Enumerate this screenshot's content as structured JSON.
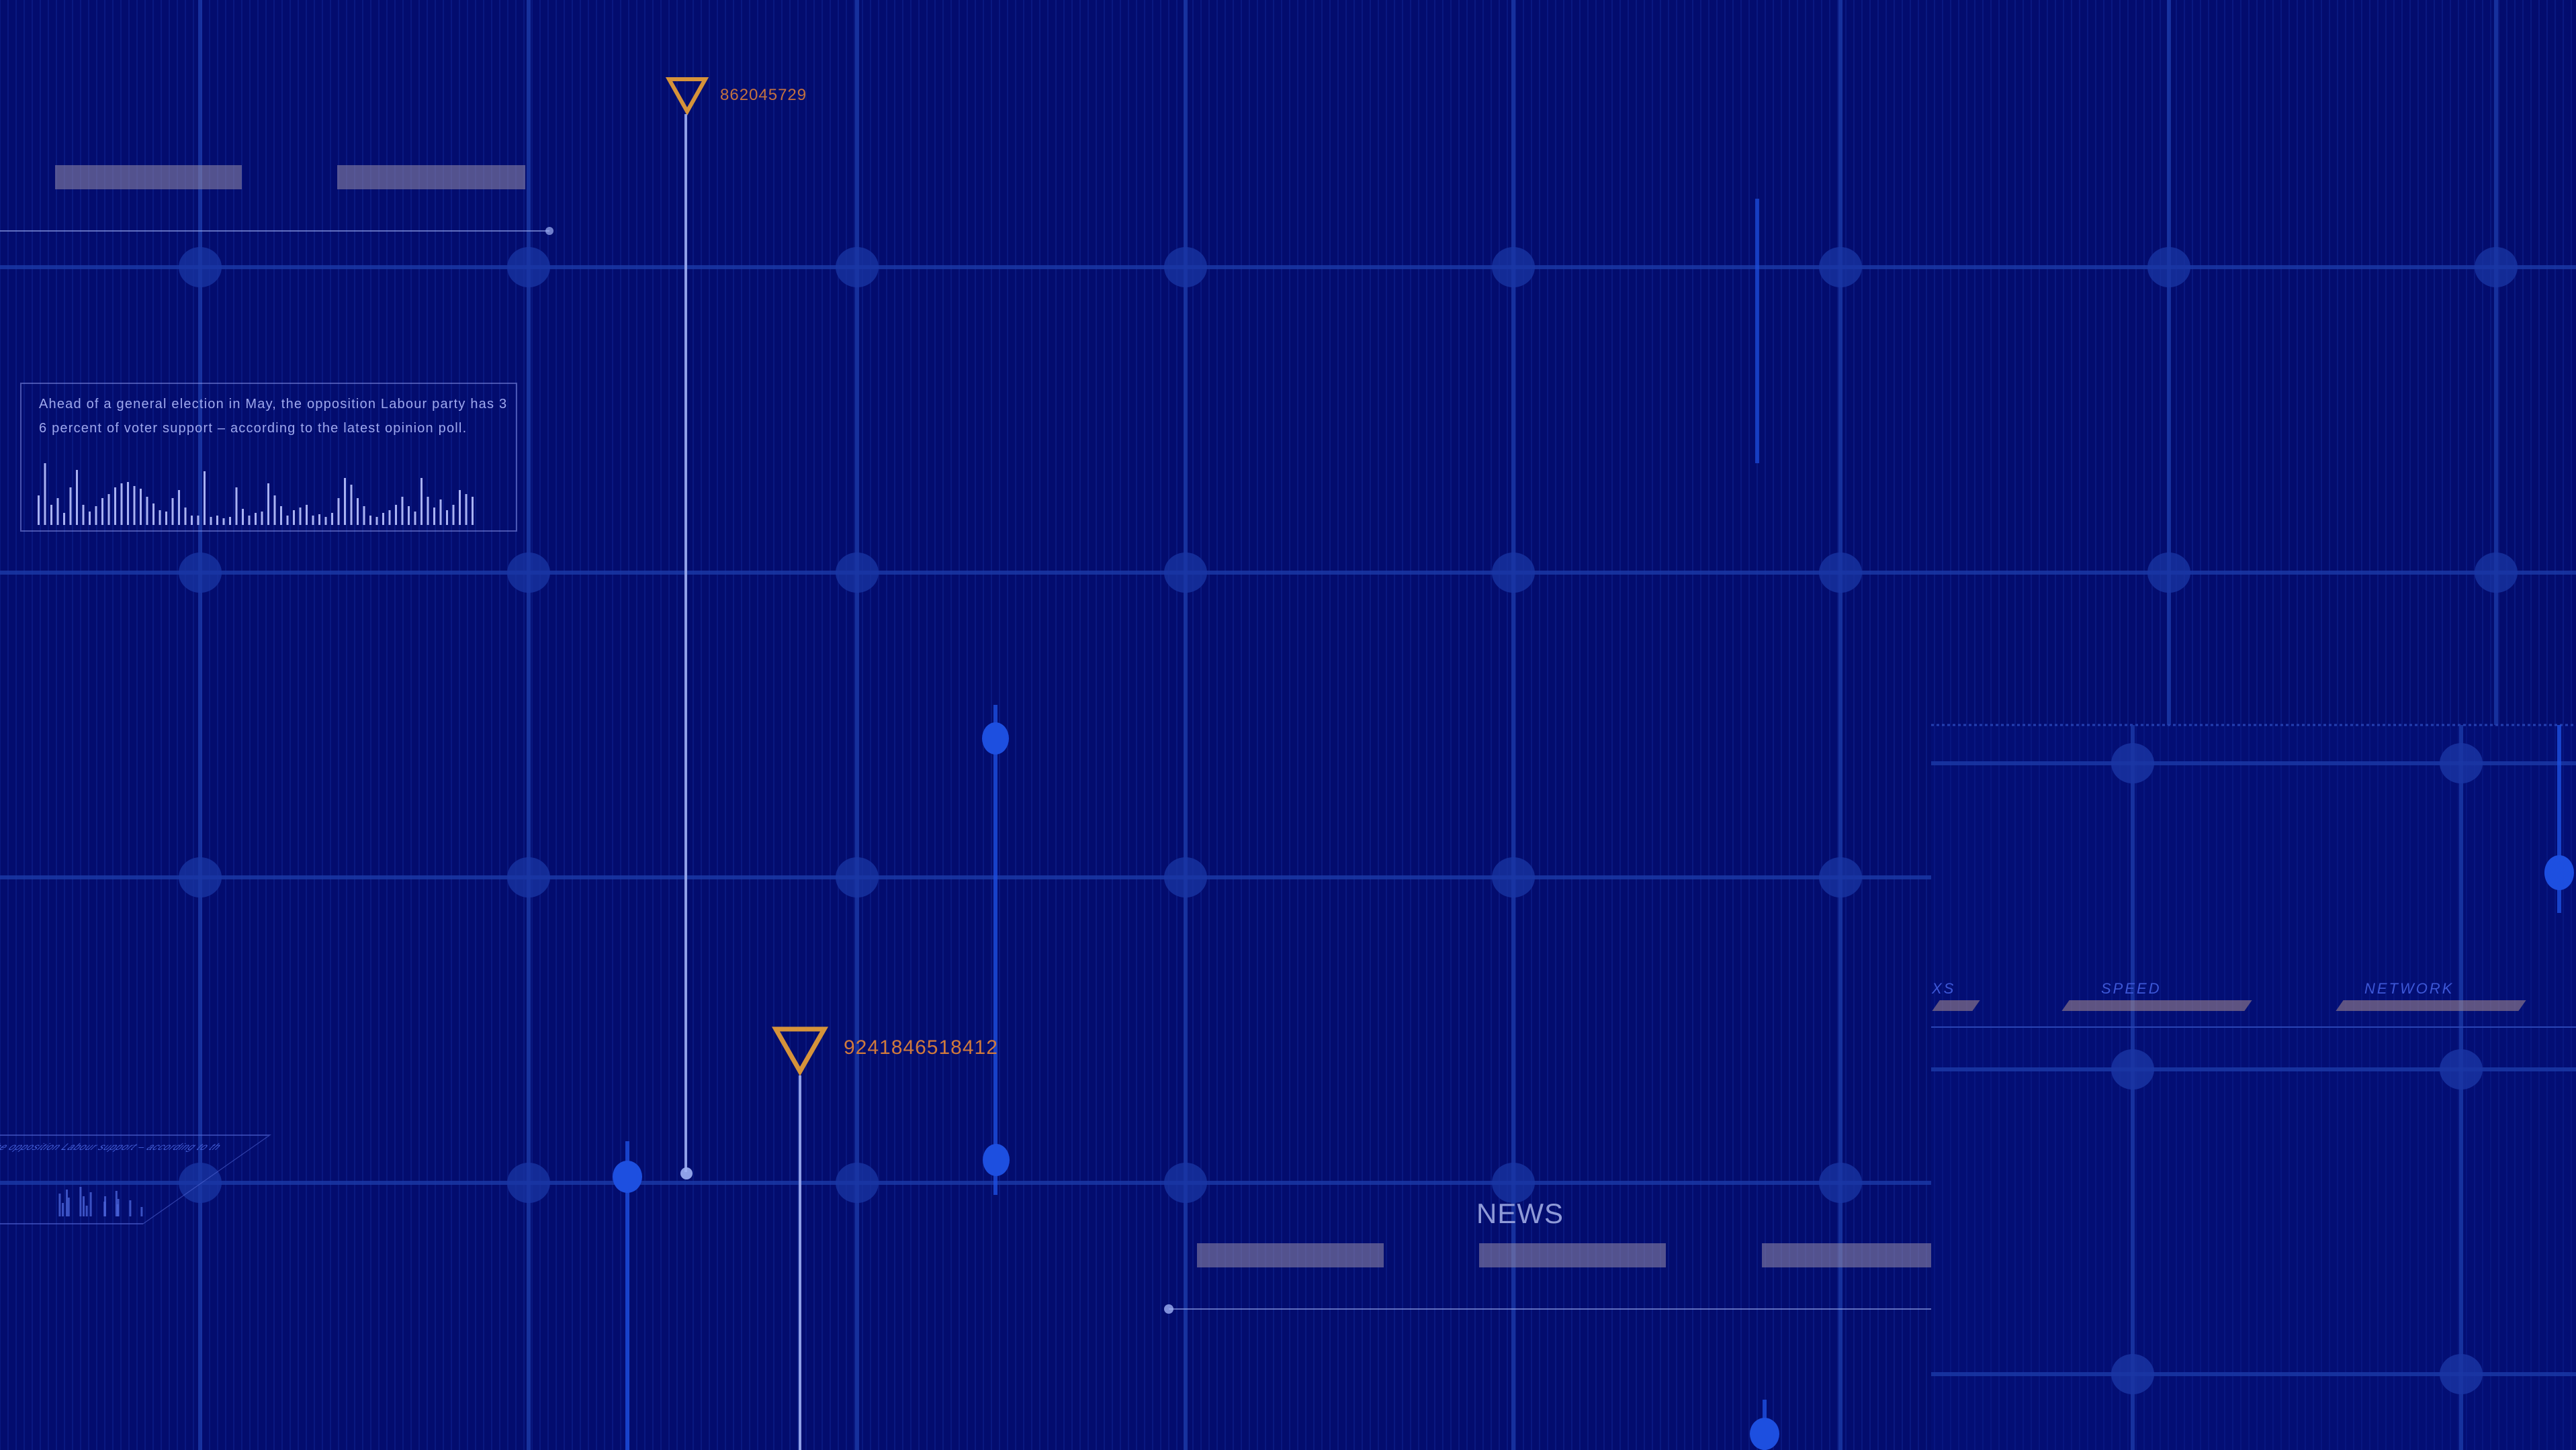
{
  "theme": {
    "background": "#030c6e",
    "grid_line": "#1b3aa8",
    "grid_node": "#1a36a4",
    "accent_orange": "#d6933a",
    "marker_text": "#c4723e",
    "pale_line": "#9fb0f4",
    "bright_blue": "#1d4fe0",
    "placeholder": "#8e8aa8"
  },
  "markers": [
    {
      "label": "862045729",
      "icon": "triangle-down-icon"
    },
    {
      "label": "9241846518412",
      "icon": "triangle-down-icon"
    }
  ],
  "info_panel": {
    "text": "Ahead of a general election in May, the opposition Labour party has 36 percent of voter support – according to the latest opinion poll."
  },
  "news": {
    "label": "NEWS"
  },
  "side_panel": {
    "labels": [
      "XS",
      "SPEED",
      "NETWORK"
    ]
  },
  "angled_panel": {
    "text": "of a gen. the opposition Labour support – according to th"
  }
}
